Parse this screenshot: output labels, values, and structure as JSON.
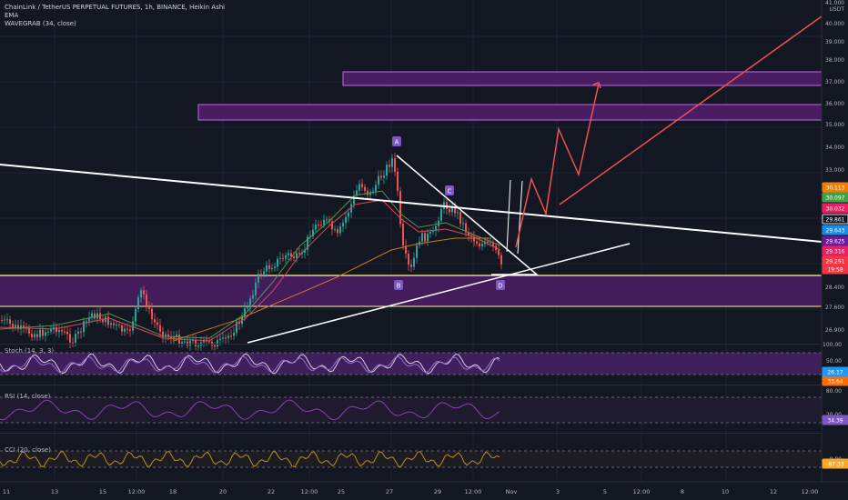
{
  "header": {
    "symbol_line": "ChainLink / TetherUS PERPETUAL FUTURES, 1h, BINANCE, Heikin Ashi",
    "indicators": [
      "EMA",
      "WAVEGRAB (34, close)"
    ]
  },
  "price_axis": {
    "currency": "USDT",
    "ticks": [
      "41.000",
      "40.000",
      "39.000",
      "38.000",
      "37.000",
      "36.000",
      "35.000",
      "34.000",
      "33.000",
      "28.400",
      "27.600",
      "26.900"
    ],
    "badges": [
      {
        "text": "30.113",
        "color": "#f57c00"
      },
      {
        "text": "30.097",
        "color": "#43a047"
      },
      {
        "text": "30.032",
        "color": "#e91e63"
      },
      {
        "text": "29.861",
        "color": "#131722"
      },
      {
        "text": "29.643",
        "color": "#1e88e5"
      },
      {
        "text": "29.625",
        "color": "#6a1b9a"
      },
      {
        "text": "29.316",
        "color": "#e91e63"
      },
      {
        "text": "29.291",
        "color": "#f23645"
      },
      {
        "text": "19:58",
        "color": "#f23645"
      }
    ]
  },
  "pattern_labels": [
    "A",
    "B",
    "C",
    "D"
  ],
  "stoch": {
    "legend": "Stoch (14, 3, 3)",
    "ticks": [
      "100.00",
      "50.00",
      "0.00"
    ],
    "badges": [
      {
        "text": "26.17",
        "color": "#2196f3"
      },
      {
        "text": "33.64",
        "color": "#ff6d00"
      }
    ]
  },
  "rsi": {
    "legend": "RSI (14, close)",
    "ticks": [
      "80.00",
      "20.00"
    ],
    "badges": [
      {
        "text": "34.39",
        "color": "#7e57c2"
      }
    ]
  },
  "cci": {
    "legend": "CCI (20, close)",
    "ticks": [
      "0.00"
    ],
    "badges": [
      {
        "text": "-87.33",
        "color": "#f9a825"
      }
    ]
  },
  "time_axis": {
    "ticks": [
      "11",
      "13",
      "15",
      "12:00",
      "18",
      "20",
      "22",
      "12:00",
      "25",
      "27",
      "29",
      "12:00",
      "Nov",
      "3",
      "5",
      "12:00",
      "8",
      "10",
      "12",
      "12:00"
    ]
  },
  "colors": {
    "background": "#131722",
    "zone": "#4a1d63",
    "zone_border": "#c964f2",
    "support": "#fff59d",
    "trendline": "#ffffff",
    "projection": "#f05050",
    "label": "#7e57c2"
  }
}
